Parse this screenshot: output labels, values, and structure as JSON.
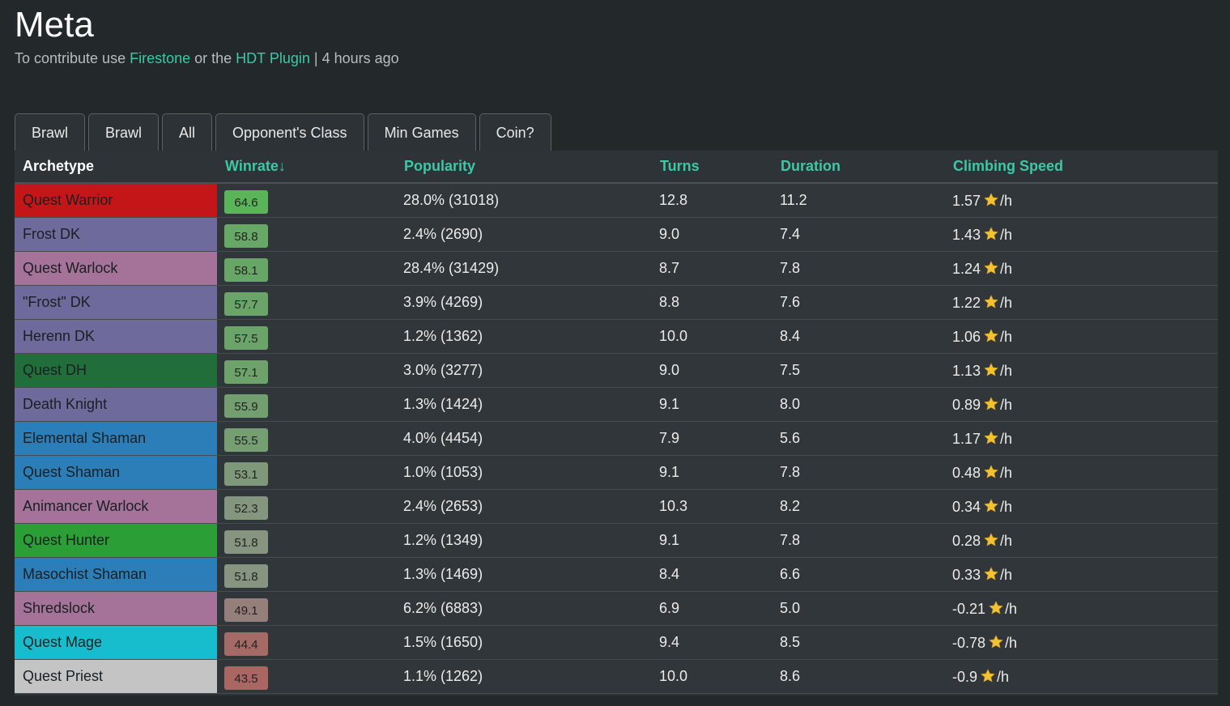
{
  "header": {
    "title": "Meta",
    "subtitle_prefix": "To contribute use ",
    "link_firestone": "Firestone",
    "subtitle_mid": " or the ",
    "link_hdt": "HDT Plugin",
    "subtitle_suffix": " | 4 hours ago"
  },
  "filters": [
    "Brawl",
    "Brawl",
    "All",
    "Opponent's Class",
    "Min Games",
    "Coin?"
  ],
  "columns": {
    "archetype": "Archetype",
    "winrate": "Winrate↓",
    "popularity": "Popularity",
    "turns": "Turns",
    "duration": "Duration",
    "climbing": "Climbing Speed"
  },
  "colors": {
    "accent": "#3cc8a6",
    "star": "#f2c230",
    "classes": {
      "warrior": "#c41618",
      "dk": "#6f6a9c",
      "warlock": "#a5739a",
      "dh": "#216e3a",
      "shaman": "#2c7eb8",
      "hunter": "#2b9e35",
      "mage": "#17bccd",
      "priest": "#c4c4c4"
    }
  },
  "rows": [
    {
      "name": "Quest Warrior",
      "class_color": "#c41618",
      "winrate": "64.6",
      "winrate_color": "#5ab558",
      "popularity": "28.0% (31018)",
      "turns": "12.8",
      "duration": "11.2",
      "climb": "1.57",
      "unit": "/h"
    },
    {
      "name": "Frost DK",
      "class_color": "#6f6a9c",
      "winrate": "58.8",
      "winrate_color": "#67a866",
      "popularity": "2.4% (2690)",
      "turns": "9.0",
      "duration": "7.4",
      "climb": "1.43",
      "unit": "/h"
    },
    {
      "name": "Quest Warlock",
      "class_color": "#a5739a",
      "winrate": "58.1",
      "winrate_color": "#68a667",
      "popularity": "28.4% (31429)",
      "turns": "8.7",
      "duration": "7.8",
      "climb": "1.24",
      "unit": "/h"
    },
    {
      "name": "\"Frost\" DK",
      "class_color": "#6f6a9c",
      "winrate": "57.7",
      "winrate_color": "#6aa468",
      "popularity": "3.9% (4269)",
      "turns": "8.8",
      "duration": "7.6",
      "climb": "1.22",
      "unit": "/h"
    },
    {
      "name": "Herenn DK",
      "class_color": "#6f6a9c",
      "winrate": "57.5",
      "winrate_color": "#6ba469",
      "popularity": "1.2% (1362)",
      "turns": "10.0",
      "duration": "8.4",
      "climb": "1.06",
      "unit": "/h"
    },
    {
      "name": "Quest DH",
      "class_color": "#216e3a",
      "winrate": "57.1",
      "winrate_color": "#6da36b",
      "popularity": "3.0% (3277)",
      "turns": "9.0",
      "duration": "7.5",
      "climb": "1.13",
      "unit": "/h"
    },
    {
      "name": "Death Knight",
      "class_color": "#6f6a9c",
      "winrate": "55.9",
      "winrate_color": "#739f70",
      "popularity": "1.3% (1424)",
      "turns": "9.1",
      "duration": "8.0",
      "climb": "0.89",
      "unit": "/h"
    },
    {
      "name": "Elemental Shaman",
      "class_color": "#2c7eb8",
      "winrate": "55.5",
      "winrate_color": "#759e72",
      "popularity": "4.0% (4454)",
      "turns": "7.9",
      "duration": "5.6",
      "climb": "1.17",
      "unit": "/h"
    },
    {
      "name": "Quest Shaman",
      "class_color": "#2c7eb8",
      "winrate": "53.1",
      "winrate_color": "#7f9879",
      "popularity": "1.0% (1053)",
      "turns": "9.1",
      "duration": "7.8",
      "climb": "0.48",
      "unit": "/h"
    },
    {
      "name": "Animancer Warlock",
      "class_color": "#a5739a",
      "winrate": "52.3",
      "winrate_color": "#84967d",
      "popularity": "2.4% (2653)",
      "turns": "10.3",
      "duration": "8.2",
      "climb": "0.34",
      "unit": "/h"
    },
    {
      "name": "Quest Hunter",
      "class_color": "#2b9e35",
      "winrate": "51.8",
      "winrate_color": "#87947f",
      "popularity": "1.2% (1349)",
      "turns": "9.1",
      "duration": "7.8",
      "climb": "0.28",
      "unit": "/h"
    },
    {
      "name": "Masochist Shaman",
      "class_color": "#2c7eb8",
      "winrate": "51.8",
      "winrate_color": "#87947f",
      "popularity": "1.3% (1469)",
      "turns": "8.4",
      "duration": "6.6",
      "climb": "0.33",
      "unit": "/h"
    },
    {
      "name": "Shredslock",
      "class_color": "#a5739a",
      "winrate": "49.1",
      "winrate_color": "#957f7b",
      "popularity": "6.2% (6883)",
      "turns": "6.9",
      "duration": "5.0",
      "climb": "-0.21",
      "unit": "/h"
    },
    {
      "name": "Quest Mage",
      "class_color": "#17bccd",
      "winrate": "44.4",
      "winrate_color": "#a56a66",
      "popularity": "1.5% (1650)",
      "turns": "9.4",
      "duration": "8.5",
      "climb": "-0.78",
      "unit": "/h"
    },
    {
      "name": "Quest Priest",
      "class_color": "#c4c4c4",
      "winrate": "43.5",
      "winrate_color": "#a96663",
      "popularity": "1.1% (1262)",
      "turns": "10.0",
      "duration": "8.6",
      "climb": "-0.9",
      "unit": "/h"
    }
  ]
}
